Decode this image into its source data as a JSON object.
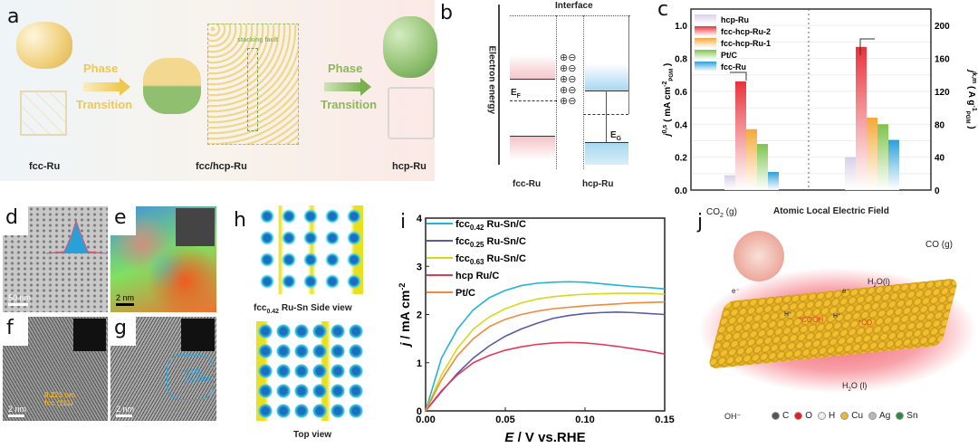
{
  "panels": {
    "a": {
      "label": "a",
      "left_phase": "Phase",
      "left_transition": "Transition",
      "right_phase": "Phase",
      "right_transition": "Transition",
      "stacking_fault": "stacking fault",
      "captions": [
        "fcc-Ru",
        "fcc/hcp-Ru",
        "hcp-Ru"
      ],
      "colors": {
        "fcc": "#f0cf7a",
        "hcp": "#8fbf6f"
      }
    },
    "b": {
      "label": "b",
      "interface": "Interface",
      "y_axis": "Electron energy",
      "ef": "E",
      "ef_sub": "F",
      "eg": "E",
      "eg_sub": "G",
      "left_caption": "fcc-Ru",
      "right_caption": "hcp-Ru",
      "plus": "⊕",
      "minus": "⊖"
    },
    "c": {
      "label": "c"
    },
    "d": {
      "label": "d",
      "scale": "50 nm"
    },
    "e": {
      "label": "e",
      "scale": "2 nm"
    },
    "f": {
      "label": "f",
      "scale": "2 nm",
      "annotation1": "0.223 nm",
      "annotation2": "fcc (111)"
    },
    "g": {
      "label": "g",
      "scale": "2 nm",
      "annotation1": "0.235",
      "annotation2": "hcp (002)"
    },
    "h": {
      "label": "h",
      "side_caption_pre": "fcc",
      "side_caption_sub": "0.42",
      "side_caption_post": " Ru-Sn Side view",
      "top_caption": "Top view"
    },
    "i": {
      "label": "i"
    },
    "j": {
      "label": "j",
      "title": "Atomic Local Electric Field",
      "co2": "CO",
      "co2_sub": "2",
      "co2_post": " (g)",
      "co": "CO (g)",
      "h2o_top": "H",
      "h2o_top_sub": "2",
      "h2o_top_post": "O(l)",
      "h2o_bottom": "H",
      "h2o_bottom_sub": "2",
      "h2o_bottom_post": "O (l)",
      "oh": "OH⁻",
      "cooh": "*COOH",
      "co_ads": "*CO",
      "electron": "e⁻",
      "proton": "H⁺",
      "legend": [
        {
          "symbol": "C",
          "color": "#555555"
        },
        {
          "symbol": "O",
          "color": "#e02020"
        },
        {
          "symbol": "H",
          "color": "#eeeeee"
        },
        {
          "symbol": "Cu",
          "color": "#e8b830"
        },
        {
          "symbol": "Ag",
          "color": "#b8b8b8"
        },
        {
          "symbol": "Sn",
          "color": "#2e8b3e"
        }
      ]
    }
  },
  "chart_data": [
    {
      "type": "bar",
      "panel": "c",
      "legend": [
        "hcp-Ru",
        "fcc-hcp-Ru-2",
        "fcc-hcp-Ru-1",
        "Pt/C",
        "fcc-Ru"
      ],
      "colors": [
        "#d8d0e6",
        "#e8323a",
        "#f5a838",
        "#7cc44a",
        "#2a9fd8"
      ],
      "left_axis": {
        "label_main": "j",
        "label_sup": "0,s",
        "label_rest": " ( mA cm",
        "label_sup2": "-2",
        "label_sub": "PGM",
        "label_end": " )",
        "ylim": [
          0,
          1.1
        ],
        "ticks": [
          "0.0",
          "0.2",
          "0.4",
          "0.6",
          "0.8",
          "1.0"
        ]
      },
      "right_axis": {
        "label_main": "j",
        "label_sup": "k,m",
        "label_rest": " ( A g",
        "label_sup2": "-1",
        "label_sub": "PGM",
        "label_end": " )",
        "ylim": [
          0,
          220
        ],
        "ticks": [
          "0",
          "40",
          "80",
          "120",
          "160",
          "200"
        ]
      },
      "groups": [
        {
          "axis": "left",
          "values": [
            0.09,
            0.66,
            0.37,
            0.28,
            0.11
          ]
        },
        {
          "axis": "right",
          "values": [
            40,
            174,
            88,
            80,
            61
          ]
        }
      ]
    },
    {
      "type": "line",
      "panel": "i",
      "xlabel_italic": "E",
      "xlabel_rest": " / V vs.RHE",
      "ylabel_italic": "j",
      "ylabel_rest": " / mA cm",
      "ylabel_sup": "-2",
      "xlim": [
        0,
        0.15
      ],
      "ylim": [
        0,
        4
      ],
      "xticks": [
        "0.00",
        "0.05",
        "0.10",
        "0.15"
      ],
      "yticks": [
        "0",
        "1",
        "2",
        "3",
        "4"
      ],
      "x": [
        0,
        0.01,
        0.02,
        0.03,
        0.04,
        0.05,
        0.06,
        0.07,
        0.08,
        0.09,
        0.1,
        0.11,
        0.12,
        0.13,
        0.14,
        0.15
      ],
      "series": [
        {
          "name_pre": "fcc",
          "name_sub": "0.42",
          "name_post": " Ru-Sn/C",
          "color": "#22b4d8",
          "values": [
            0,
            1.1,
            1.7,
            2.1,
            2.35,
            2.5,
            2.6,
            2.65,
            2.67,
            2.68,
            2.67,
            2.64,
            2.61,
            2.58,
            2.56,
            2.53
          ]
        },
        {
          "name_pre": "fcc",
          "name_sub": "0.25",
          "name_post": " Ru-Sn/C",
          "color": "#5a5aa8",
          "values": [
            0,
            0.4,
            0.78,
            1.1,
            1.35,
            1.55,
            1.7,
            1.82,
            1.92,
            1.98,
            2.02,
            2.04,
            2.05,
            2.04,
            2.02,
            2.0
          ]
        },
        {
          "name_pre": "fcc",
          "name_sub": "0.63",
          "name_post": " Ru-Sn/C",
          "color": "#d8d81a",
          "values": [
            0,
            0.75,
            1.3,
            1.7,
            1.95,
            2.12,
            2.24,
            2.32,
            2.37,
            2.4,
            2.42,
            2.43,
            2.44,
            2.44,
            2.44,
            2.42
          ]
        },
        {
          "name_pre": "hcp Ru/C",
          "name_sub": "",
          "name_post": "",
          "color": "#e03a5a",
          "values": [
            0,
            0.42,
            0.75,
            1.0,
            1.15,
            1.26,
            1.33,
            1.38,
            1.41,
            1.42,
            1.41,
            1.38,
            1.34,
            1.29,
            1.24,
            1.18
          ]
        },
        {
          "name_pre": "Pt/C",
          "name_sub": "",
          "name_post": "",
          "color": "#f08a3a",
          "values": [
            0,
            0.65,
            1.15,
            1.5,
            1.75,
            1.9,
            2.0,
            2.07,
            2.12,
            2.15,
            2.18,
            2.2,
            2.22,
            2.24,
            2.25,
            2.26
          ]
        }
      ]
    }
  ]
}
